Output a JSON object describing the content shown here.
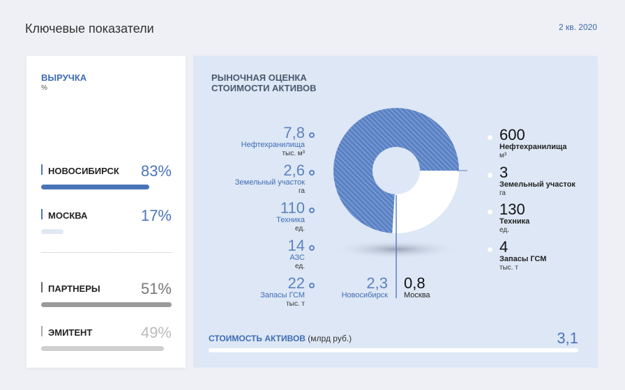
{
  "header": {
    "title": "Ключевые показатели",
    "period": "2 кв. 2020"
  },
  "revenue": {
    "title": "ВЫРУЧКА",
    "unit": "%",
    "items": [
      {
        "name": "НОВОСИБИРСК",
        "pct": "83%",
        "value": 0.83,
        "color": "#4a74b8"
      },
      {
        "name": "МОСКВА",
        "pct": "17%",
        "value": 0.17,
        "color": "#e1e8f4"
      },
      {
        "name": "ПАРТНЕРЫ",
        "pct": "51%",
        "value": 1.0,
        "color": "#9a9a9a"
      },
      {
        "name": "ЭМИТЕНТ",
        "pct": "49%",
        "value": 0.94,
        "color": "#cfcfcf"
      }
    ]
  },
  "assets": {
    "title_line1": "РЫНОЧНАЯ ОЦЕНКА",
    "title_line2": "СТОИМОСТИ АКТИВОВ",
    "left": [
      {
        "value": "7,8",
        "label": "Нефтехранилища",
        "unit": "тыс. м³"
      },
      {
        "value": "2,6",
        "label": "Земельный участок",
        "unit": "га"
      },
      {
        "value": "110",
        "label": "Техника",
        "unit": "ед."
      },
      {
        "value": "14",
        "label": "АЗС",
        "unit": "ед."
      },
      {
        "value": "22",
        "label": "Запасы ГСМ",
        "unit": "тыс. т"
      }
    ],
    "right": [
      {
        "value": "600",
        "label": "Нефтехранилища",
        "unit": "м³"
      },
      {
        "value": "3",
        "label": "Земельный участок",
        "unit": "га"
      },
      {
        "value": "130",
        "label": "Техника",
        "unit": "ед."
      },
      {
        "value": "4",
        "label": "Запасы ГСМ",
        "unit": "тыс. т"
      }
    ],
    "split": {
      "novosibirsk": {
        "value": "2,3",
        "label": "Новосибирск",
        "share": 0.74
      },
      "moscow": {
        "value": "0,8",
        "label": "Москва",
        "share": 0.26
      }
    },
    "total": {
      "label": "СТОИМОСТЬ АКТИВОВ",
      "unit": " (млрд руб.)",
      "value": "3,1"
    },
    "colors": {
      "novosibirsk": "#5a82c4",
      "moscow": "#ffffff"
    }
  }
}
